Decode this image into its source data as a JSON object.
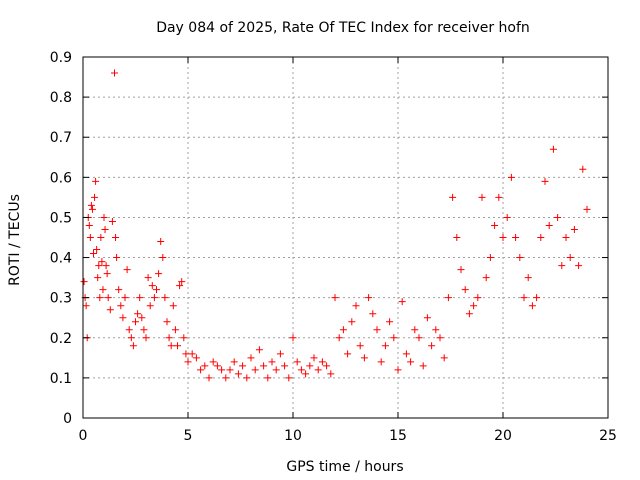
{
  "chart_data": {
    "type": "scatter",
    "title": "Day 084 of 2025, Rate Of TEC Index for receiver hofn",
    "xlabel": "GPS time / hours",
    "ylabel": "ROTI / TECUs",
    "xlim": [
      0,
      25
    ],
    "ylim": [
      0,
      0.9
    ],
    "xticks": [
      0,
      5,
      10,
      15,
      20,
      25
    ],
    "xtick_labels": [
      "0",
      "5",
      "10",
      "15",
      "20",
      "25"
    ],
    "yticks": [
      0,
      0.1,
      0.2,
      0.3,
      0.4,
      0.5,
      0.6,
      0.7,
      0.8,
      0.9
    ],
    "ytick_labels": [
      "0",
      "0.1",
      "0.2",
      "0.3",
      "0.4",
      "0.5",
      "0.6",
      "0.7",
      "0.8",
      "0.9"
    ],
    "grid": true,
    "marker": "plus",
    "color": "#ff0000",
    "series": [
      {
        "x": [
          0.05,
          0.1,
          0.15,
          0.2,
          0.25,
          0.3,
          0.35,
          0.4,
          0.45,
          0.5,
          0.55,
          0.6,
          0.65,
          0.7,
          0.75,
          0.8,
          0.85,
          0.9,
          0.95,
          1.0,
          1.05,
          1.1,
          1.15,
          1.2,
          1.3,
          1.4,
          1.5,
          1.55,
          1.6,
          1.7,
          1.8,
          1.9,
          2.0,
          2.1,
          2.2,
          2.3,
          2.4,
          2.5,
          2.6,
          2.7,
          2.8,
          2.9,
          3.0,
          3.1,
          3.2,
          3.3,
          3.4,
          3.5,
          3.6,
          3.7,
          3.8,
          3.9,
          4.0,
          4.1,
          4.2,
          4.3,
          4.4,
          4.5,
          4.6,
          4.7,
          4.8,
          4.9,
          5.0,
          5.2,
          5.4,
          5.6,
          5.8,
          6.0,
          6.2,
          6.4,
          6.6,
          6.8,
          7.0,
          7.2,
          7.4,
          7.6,
          7.8,
          8.0,
          8.2,
          8.4,
          8.6,
          8.8,
          9.0,
          9.2,
          9.4,
          9.6,
          9.8,
          10.0,
          10.2,
          10.4,
          10.6,
          10.8,
          11.0,
          11.2,
          11.4,
          11.6,
          11.8,
          12.0,
          12.2,
          12.4,
          12.6,
          12.8,
          13.0,
          13.2,
          13.4,
          13.6,
          13.8,
          14.0,
          14.2,
          14.4,
          14.6,
          14.8,
          15.0,
          15.2,
          15.4,
          15.6,
          15.8,
          16.0,
          16.2,
          16.4,
          16.6,
          16.8,
          17.0,
          17.2,
          17.4,
          17.6,
          17.8,
          18.0,
          18.2,
          18.4,
          18.6,
          18.8,
          19.0,
          19.2,
          19.4,
          19.6,
          19.8,
          20.0,
          20.2,
          20.4,
          20.6,
          20.8,
          21.0,
          21.2,
          21.4,
          21.6,
          21.8,
          22.0,
          22.2,
          22.4,
          22.6,
          22.8,
          23.0,
          23.2,
          23.4,
          23.6,
          23.8,
          24.0
        ],
        "y": [
          0.34,
          0.3,
          0.28,
          0.2,
          0.5,
          0.48,
          0.45,
          0.53,
          0.52,
          0.41,
          0.55,
          0.59,
          0.42,
          0.35,
          0.38,
          0.3,
          0.45,
          0.39,
          0.32,
          0.5,
          0.47,
          0.38,
          0.36,
          0.3,
          0.27,
          0.49,
          0.86,
          0.45,
          0.4,
          0.32,
          0.28,
          0.25,
          0.3,
          0.37,
          0.22,
          0.2,
          0.18,
          0.24,
          0.26,
          0.3,
          0.25,
          0.22,
          0.2,
          0.35,
          0.28,
          0.33,
          0.3,
          0.32,
          0.36,
          0.44,
          0.4,
          0.3,
          0.24,
          0.2,
          0.18,
          0.28,
          0.22,
          0.18,
          0.33,
          0.34,
          0.2,
          0.16,
          0.14,
          0.16,
          0.15,
          0.12,
          0.13,
          0.1,
          0.14,
          0.13,
          0.12,
          0.1,
          0.12,
          0.14,
          0.11,
          0.13,
          0.1,
          0.15,
          0.12,
          0.17,
          0.13,
          0.1,
          0.14,
          0.12,
          0.16,
          0.13,
          0.1,
          0.2,
          0.14,
          0.12,
          0.11,
          0.13,
          0.15,
          0.12,
          0.14,
          0.13,
          0.11,
          0.3,
          0.2,
          0.22,
          0.16,
          0.24,
          0.28,
          0.18,
          0.15,
          0.3,
          0.26,
          0.22,
          0.14,
          0.18,
          0.24,
          0.2,
          0.12,
          0.29,
          0.16,
          0.14,
          0.22,
          0.2,
          0.13,
          0.25,
          0.18,
          0.22,
          0.2,
          0.15,
          0.3,
          0.55,
          0.45,
          0.37,
          0.32,
          0.26,
          0.28,
          0.3,
          0.55,
          0.35,
          0.4,
          0.48,
          0.55,
          0.45,
          0.5,
          0.6,
          0.45,
          0.4,
          0.3,
          0.35,
          0.28,
          0.3,
          0.45,
          0.59,
          0.48,
          0.67,
          0.5,
          0.38,
          0.45,
          0.4,
          0.47,
          0.38,
          0.62,
          0.52
        ]
      }
    ]
  }
}
